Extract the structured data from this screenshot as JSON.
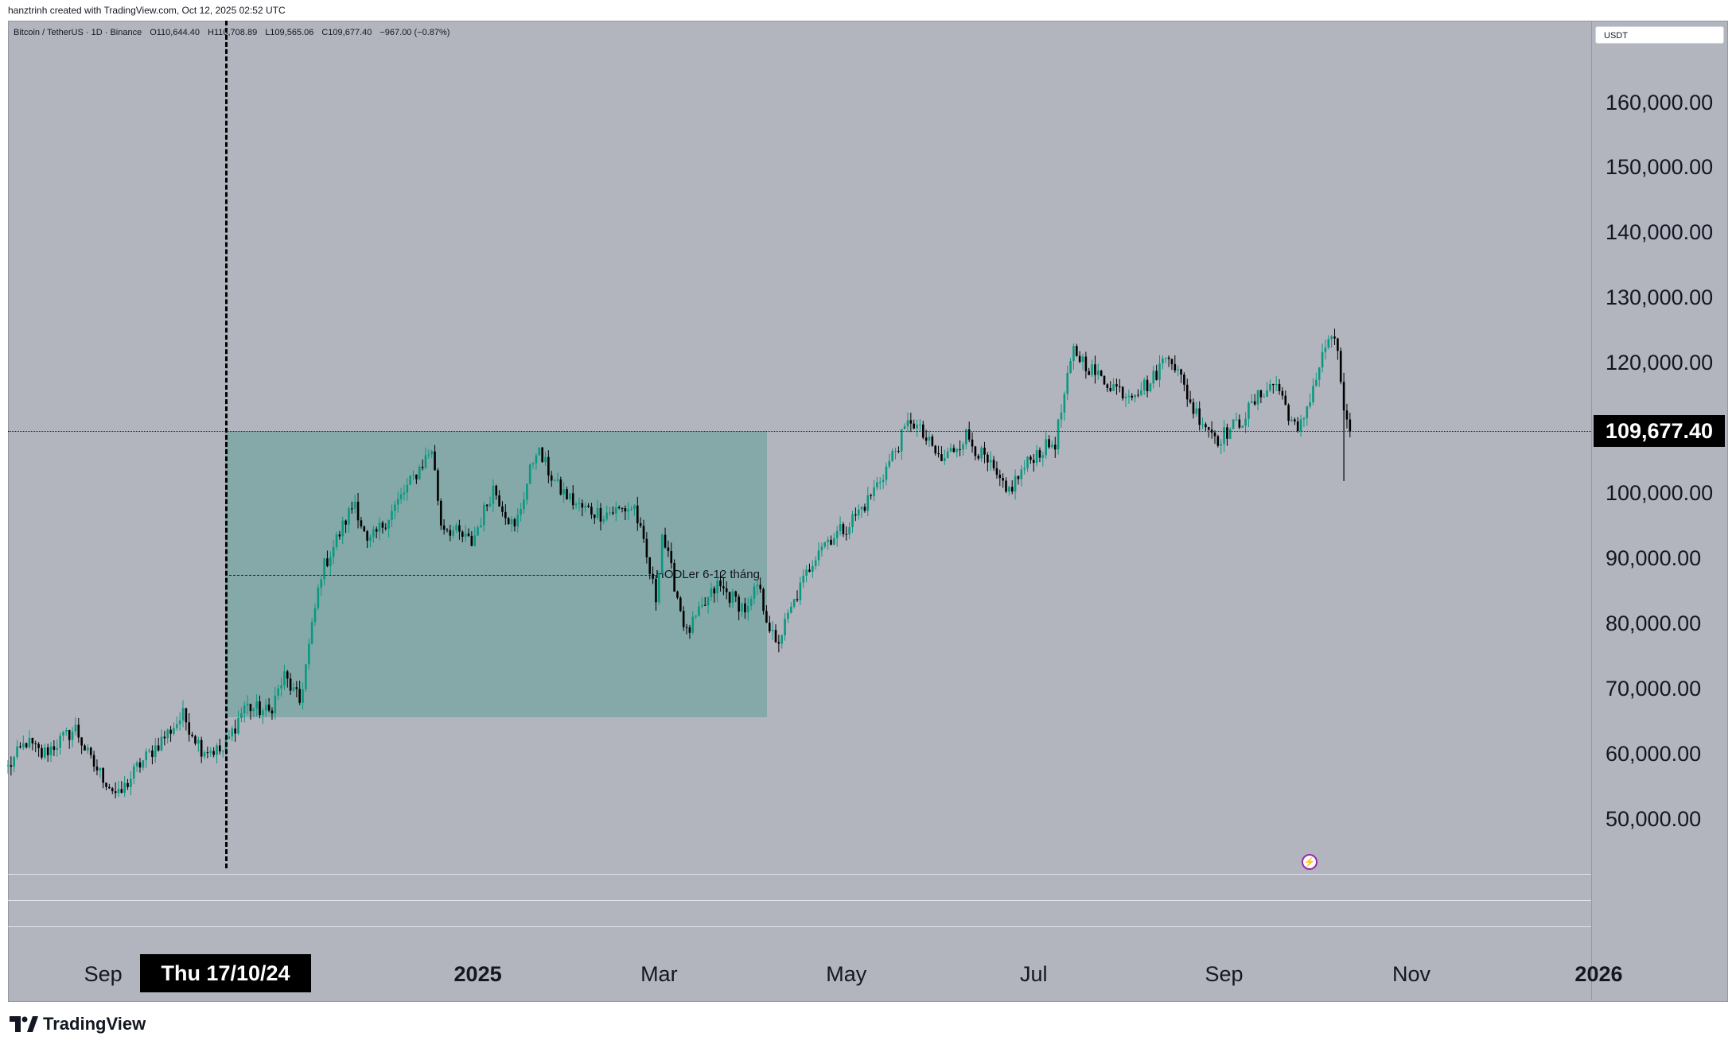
{
  "header": {
    "created_by": "hanztrinh created with TradingView.com, Oct 12, 2025 02:52 UTC"
  },
  "symbol": {
    "name": "Bitcoin / TetherUS · 1D · Binance",
    "open": "O110,644.40",
    "high": "H110,708.89",
    "low": "L109,565.06",
    "close": "C109,677.40",
    "change": "−967.00 (−0.87%)"
  },
  "currency": "USDT",
  "price_axis": {
    "labels": [
      "160,000.00",
      "150,000.00",
      "140,000.00",
      "130,000.00",
      "120,000.00",
      "100,000.00",
      "90,000.00",
      "80,000.00",
      "70,000.00",
      "60,000.00",
      "50,000.00"
    ],
    "current_price": "109,677.40"
  },
  "time_axis": {
    "labels": [
      {
        "text": "Sep",
        "bold": false
      },
      {
        "text": "2025",
        "bold": true
      },
      {
        "text": "Mar",
        "bold": false
      },
      {
        "text": "May",
        "bold": false
      },
      {
        "text": "Jul",
        "bold": false
      },
      {
        "text": "Sep",
        "bold": false
      },
      {
        "text": "Nov",
        "bold": false
      },
      {
        "text": "2026",
        "bold": true
      }
    ],
    "crosshair_date": "Thu 17/10/24"
  },
  "annotation": {
    "text": "HODLer 6-12 tháng"
  },
  "colors": {
    "up": "#089981",
    "down": "#000000",
    "background": "#b2b5be",
    "range_fill": "#4c9b8d"
  },
  "branding": "TradingView",
  "chart_data": {
    "type": "candlestick",
    "title": "Bitcoin / TetherUS · 1D · Binance",
    "ylim": [
      40000,
      170000
    ],
    "x_start": "2024-08-01",
    "x_end": "2026-01-01",
    "range_box": {
      "from": "2024-10-17",
      "to": "2025-04-22",
      "low": 65500,
      "high": 109677.4
    },
    "close_anchors": [
      [
        "2024-08-01",
        58000
      ],
      [
        "2024-08-07",
        62000
      ],
      [
        "2024-08-12",
        60000
      ],
      [
        "2024-08-23",
        64000
      ],
      [
        "2024-08-28",
        59000
      ],
      [
        "2024-09-06",
        53500
      ],
      [
        "2024-09-12",
        58000
      ],
      [
        "2024-09-27",
        66000
      ],
      [
        "2024-10-03",
        61000
      ],
      [
        "2024-10-10",
        60500
      ],
      [
        "2024-10-17",
        67500
      ],
      [
        "2024-10-25",
        66500
      ],
      [
        "2024-10-30",
        72000
      ],
      [
        "2024-11-04",
        68000
      ],
      [
        "2024-11-11",
        88000
      ],
      [
        "2024-11-22",
        99000
      ],
      [
        "2024-11-26",
        92000
      ],
      [
        "2024-12-05",
        98000
      ],
      [
        "2024-12-17",
        107000
      ],
      [
        "2024-12-20",
        95500
      ],
      [
        "2024-12-30",
        92500
      ],
      [
        "2025-01-06",
        101000
      ],
      [
        "2025-01-13",
        94500
      ],
      [
        "2025-01-20",
        107000
      ],
      [
        "2025-01-27",
        101000
      ],
      [
        "2025-02-03",
        98000
      ],
      [
        "2025-02-10",
        97000
      ],
      [
        "2025-02-21",
        98000
      ],
      [
        "2025-02-28",
        84000
      ],
      [
        "2025-03-02",
        94000
      ],
      [
        "2025-03-10",
        78500
      ],
      [
        "2025-03-20",
        86000
      ],
      [
        "2025-03-30",
        82000
      ],
      [
        "2025-04-02",
        86000
      ],
      [
        "2025-04-08",
        76500
      ],
      [
        "2025-04-15",
        84500
      ],
      [
        "2025-04-22",
        92000
      ],
      [
        "2025-05-01",
        95000
      ],
      [
        "2025-05-08",
        99000
      ],
      [
        "2025-05-14",
        104000
      ],
      [
        "2025-05-22",
        111500
      ],
      [
        "2025-06-01",
        105000
      ],
      [
        "2025-06-09",
        109000
      ],
      [
        "2025-06-17",
        104000
      ],
      [
        "2025-06-22",
        100000
      ],
      [
        "2025-07-01",
        106000
      ],
      [
        "2025-07-08",
        108000
      ],
      [
        "2025-07-14",
        122000
      ],
      [
        "2025-07-22",
        118000
      ],
      [
        "2025-07-31",
        115500
      ],
      [
        "2025-08-08",
        117000
      ],
      [
        "2025-08-14",
        122000
      ],
      [
        "2025-08-22",
        113000
      ],
      [
        "2025-08-30",
        108500
      ],
      [
        "2025-09-06",
        111000
      ],
      [
        "2025-09-14",
        116000
      ],
      [
        "2025-09-18",
        117000
      ],
      [
        "2025-09-25",
        109000
      ],
      [
        "2025-10-01",
        118000
      ],
      [
        "2025-10-05",
        124000
      ],
      [
        "2025-10-08",
        122000
      ],
      [
        "2025-10-10",
        113000
      ],
      [
        "2025-10-11",
        110600
      ],
      [
        "2025-10-12",
        109677.4
      ]
    ]
  }
}
